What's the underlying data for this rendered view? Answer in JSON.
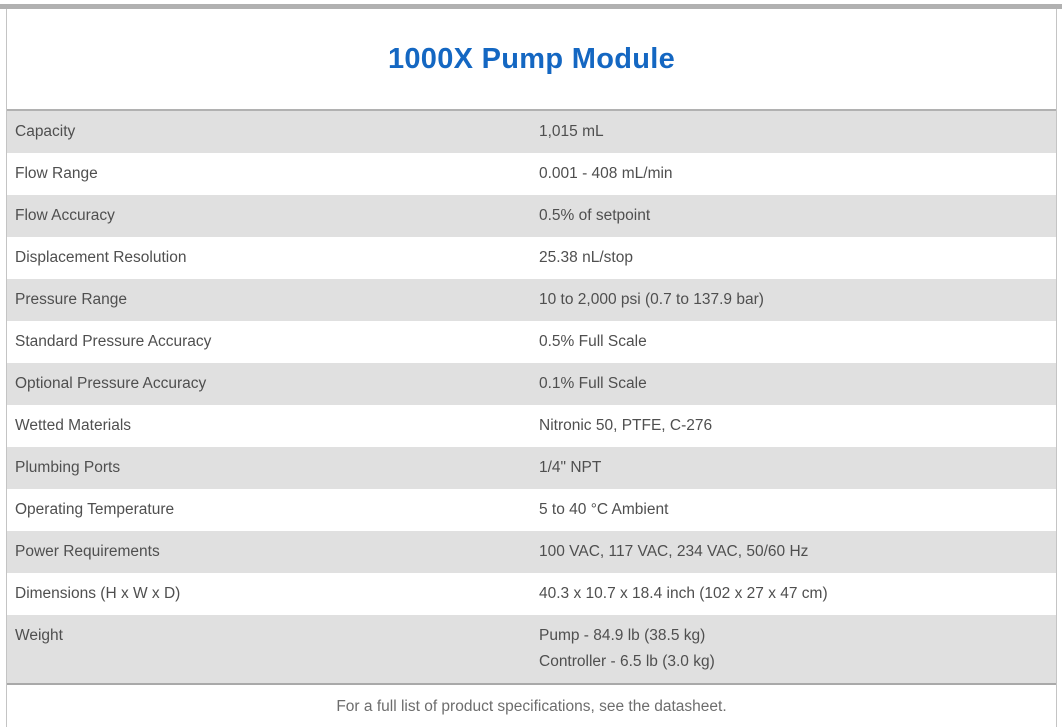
{
  "page": {
    "title": "1000X Pump Module",
    "footer_note": "For a full list of product specifications, see the datasheet."
  },
  "colors": {
    "title_blue": "#1467c2",
    "row_alt_gray": "#e0e0e0",
    "bar_gray": "#b1b1b1",
    "body_text_gray": "#4f4f4f",
    "footer_text_gray": "#6d6d6d"
  },
  "spec_table": {
    "rows": [
      {
        "label": "Capacity",
        "value": "1,015 mL"
      },
      {
        "label": "Flow Range",
        "value": "0.001 - 408 mL/min"
      },
      {
        "label": "Flow Accuracy",
        "value": "0.5% of setpoint"
      },
      {
        "label": "Displacement Resolution",
        "value": "25.38 nL/stop"
      },
      {
        "label": "Pressure Range",
        "value": "10 to 2,000 psi (0.7 to 137.9 bar)"
      },
      {
        "label": "Standard Pressure Accuracy",
        "value": "0.5% Full Scale"
      },
      {
        "label": "Optional Pressure Accuracy",
        "value": "0.1% Full Scale"
      },
      {
        "label": "Wetted Materials",
        "value": "Nitronic 50, PTFE, C-276"
      },
      {
        "label": "Plumbing Ports",
        "value": "1/4\" NPT"
      },
      {
        "label": "Operating Temperature",
        "value": "5 to 40 °C Ambient"
      },
      {
        "label": "Power Requirements",
        "value": "100 VAC, 117 VAC, 234 VAC, 50/60 Hz"
      },
      {
        "label": "Dimensions (H x W x D)",
        "value": "40.3 x 10.7 x 18.4 inch (102 x 27 x 47 cm)"
      },
      {
        "label": "Weight",
        "value": [
          "Pump - 84.9 lb (38.5 kg)",
          "Controller - 6.5 lb (3.0 kg)"
        ]
      }
    ]
  }
}
